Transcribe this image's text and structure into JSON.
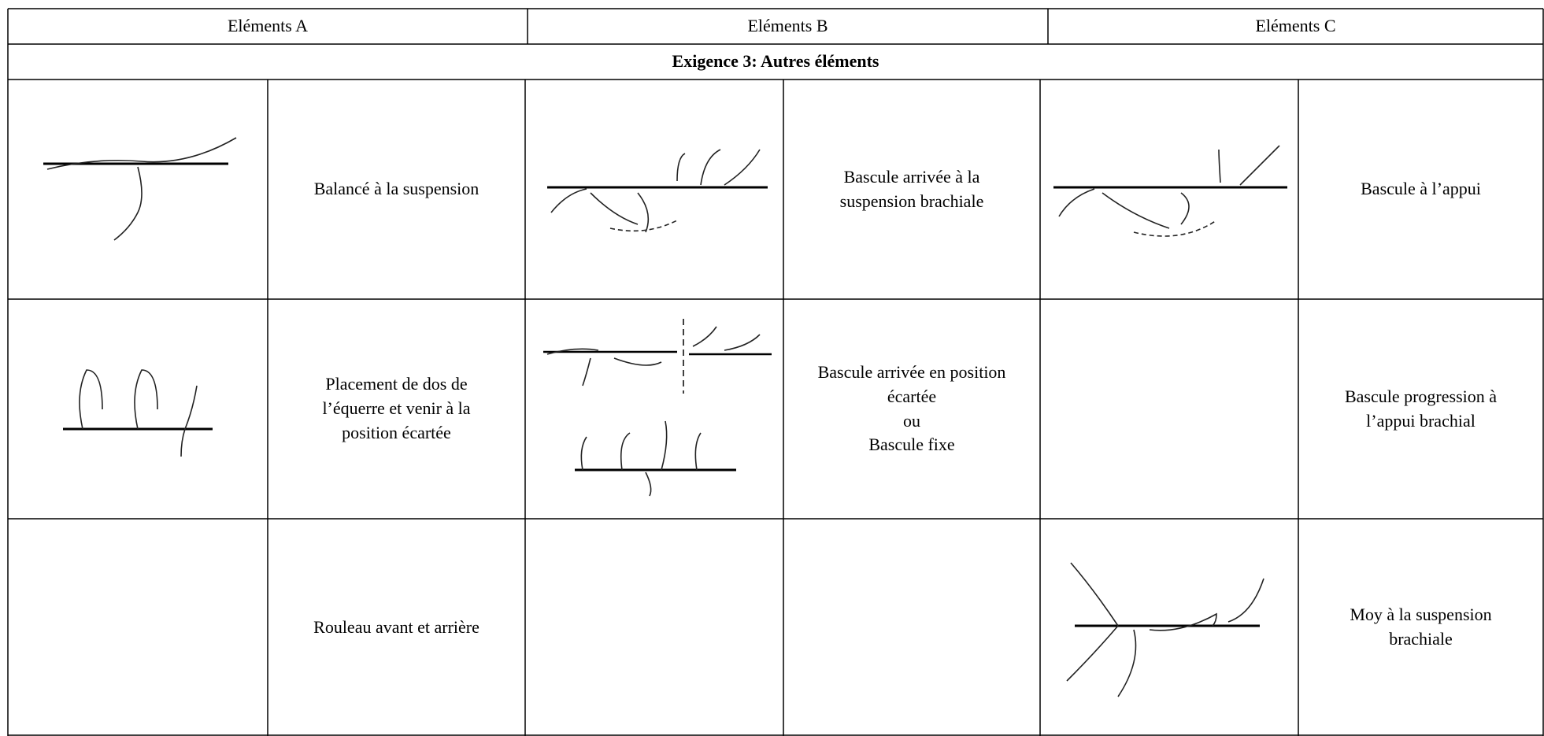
{
  "header": {
    "columns": [
      "Eléments A",
      "Eléments B",
      "Eléments C"
    ]
  },
  "table": {
    "title": "Exigence 3: Autres éléments",
    "rows": [
      [
        "Balancé à la suspension",
        [
          "Bascule arrivée à la",
          "suspension brachiale"
        ],
        "Bascule à l’appui"
      ],
      [
        [
          "Placement de dos de",
          "l’équerre et venir à la",
          "position écartée"
        ],
        [
          "Bascule arrivée en position",
          "écartée",
          "ou",
          "Bascule fixe"
        ],
        [
          "Bascule progression à",
          "l’appui brachial"
        ]
      ],
      [
        "Rouleau avant et arrière",
        null,
        [
          "Moy à la suspension",
          "brachiale"
        ]
      ]
    ]
  }
}
